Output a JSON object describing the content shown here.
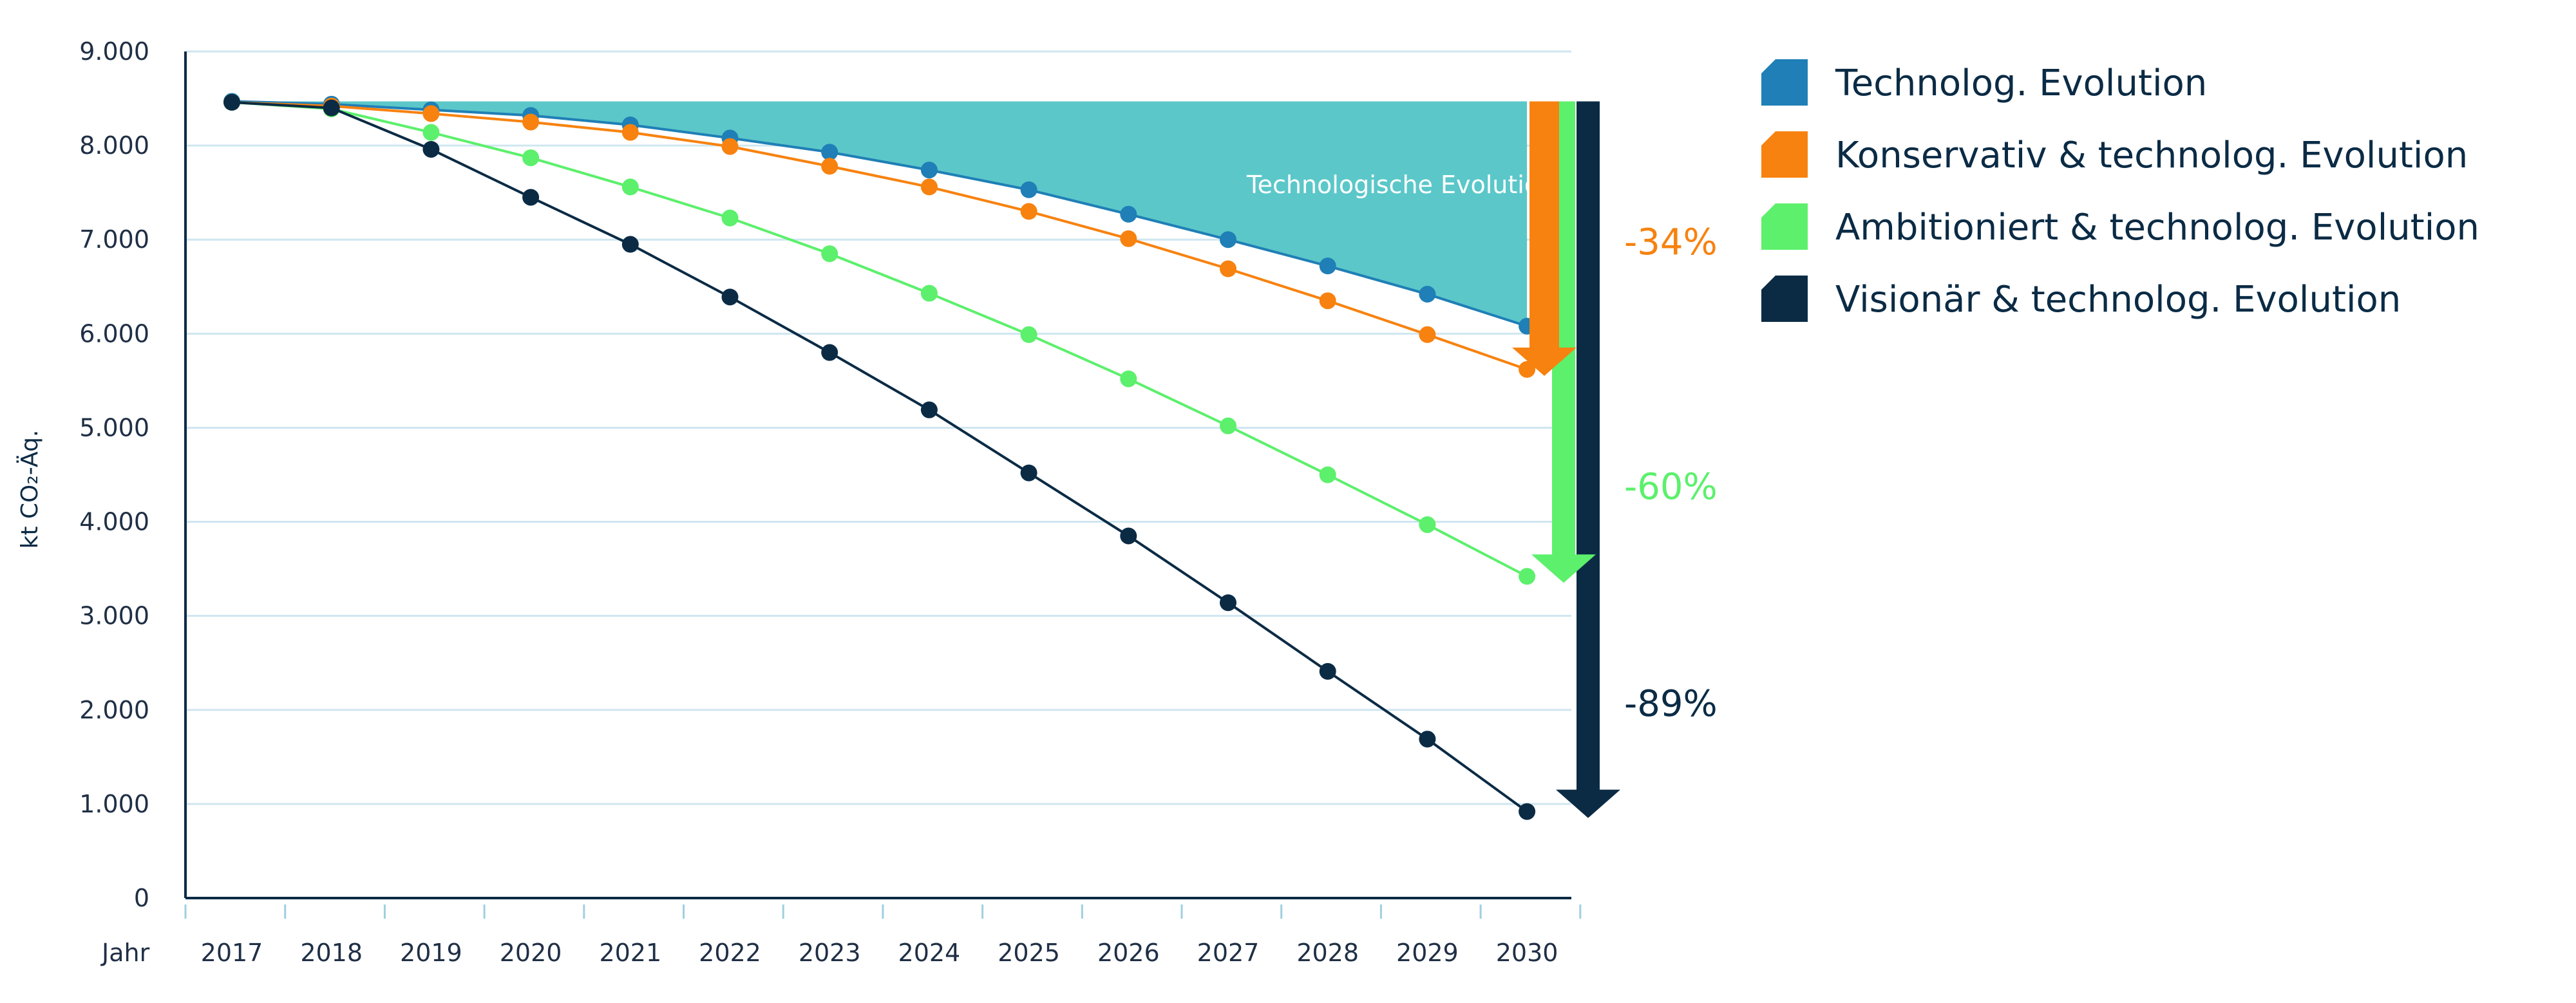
{
  "chart_data": {
    "type": "line",
    "title": "",
    "ylabel": "kt CO₂-Äq.",
    "xlabel": "Jahr",
    "ylim": [
      0,
      9000
    ],
    "y_ticks": [
      "0",
      "1.000",
      "2.000",
      "3.000",
      "4.000",
      "5.000",
      "6.000",
      "7.000",
      "8.000",
      "9.000"
    ],
    "y_tick_values": [
      0,
      1000,
      2000,
      3000,
      4000,
      5000,
      6000,
      7000,
      8000,
      9000
    ],
    "x": [
      "2017",
      "2018",
      "2019",
      "2020",
      "2021",
      "2022",
      "2023",
      "2024",
      "2025",
      "2026",
      "2027",
      "2028",
      "2029",
      "2030"
    ],
    "grid": true,
    "legend_position": "top-right",
    "area_label": "Technologische Evolution",
    "series": [
      {
        "name": "Technolog. Evolution",
        "color": "#1f7fb6",
        "values": [
          8470,
          8440,
          8380,
          8320,
          8220,
          8080,
          7930,
          7740,
          7530,
          7270,
          7000,
          6720,
          6420,
          6080
        ]
      },
      {
        "name": "Konservativ & technolog. Evolution",
        "color": "#f7820f",
        "values": [
          8460,
          8420,
          8340,
          8250,
          8140,
          7990,
          7780,
          7560,
          7300,
          7010,
          6690,
          6350,
          5990,
          5620
        ]
      },
      {
        "name": "Ambitioniert & technolog. Evolution",
        "color": "#5cf06c",
        "values": [
          8460,
          8390,
          8140,
          7870,
          7560,
          7230,
          6850,
          6430,
          5990,
          5520,
          5020,
          4500,
          3970,
          3420
        ]
      },
      {
        "name": "Visionär & technolog. Evolution",
        "color": "#0b2b45",
        "values": [
          8460,
          8400,
          7960,
          7450,
          6950,
          6390,
          5800,
          5190,
          4520,
          3850,
          3140,
          2410,
          1690,
          920
        ]
      }
    ],
    "reductions": [
      {
        "label": "-34%",
        "color": "#f7820f",
        "to": 5620
      },
      {
        "label": "-60%",
        "color": "#5cf06c",
        "to": 3420
      },
      {
        "label": "-89%",
        "color": "#0b2b45",
        "to": 920
      }
    ]
  }
}
